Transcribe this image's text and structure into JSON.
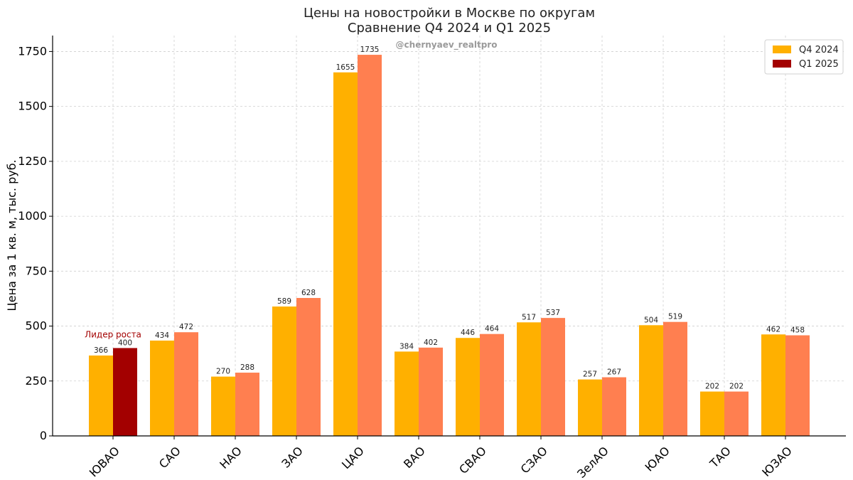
{
  "chart_data": {
    "type": "bar",
    "title": "Цены на новостройки в Москве по округам",
    "subtitle": "Сравнение Q4 2024 и Q1 2025",
    "xlabel": "",
    "ylabel": "Цена за 1 кв. м, тыс. руб.",
    "ylim": [
      0,
      1800
    ],
    "yticks": [
      0,
      250,
      500,
      750,
      1000,
      1250,
      1500,
      1750
    ],
    "grid": true,
    "legend_position": "top-right",
    "categories": [
      "ЮВАО",
      "САО",
      "НАО",
      "ЗАО",
      "ЦАО",
      "ВАО",
      "СВАО",
      "СЗАО",
      "ЗелАО",
      "ЮАО",
      "ТАО",
      "ЮЗАО"
    ],
    "series": [
      {
        "name": "Q4 2024",
        "color": "#ffb000",
        "values": [
          366,
          434,
          270,
          589,
          1655,
          384,
          446,
          517,
          257,
          504,
          202,
          462
        ]
      },
      {
        "name": "Q1 2025",
        "color": "#ff7f50",
        "legend_color": "#a30000",
        "highlight_color": "#a30000",
        "highlight_index": 0,
        "values": [
          400,
          472,
          288,
          628,
          1735,
          402,
          464,
          537,
          267,
          519,
          202,
          458
        ]
      }
    ],
    "annotation": {
      "text": "Лидер роста",
      "category": "ЮВАО"
    },
    "watermark": "@chernyaev_realtpro"
  }
}
